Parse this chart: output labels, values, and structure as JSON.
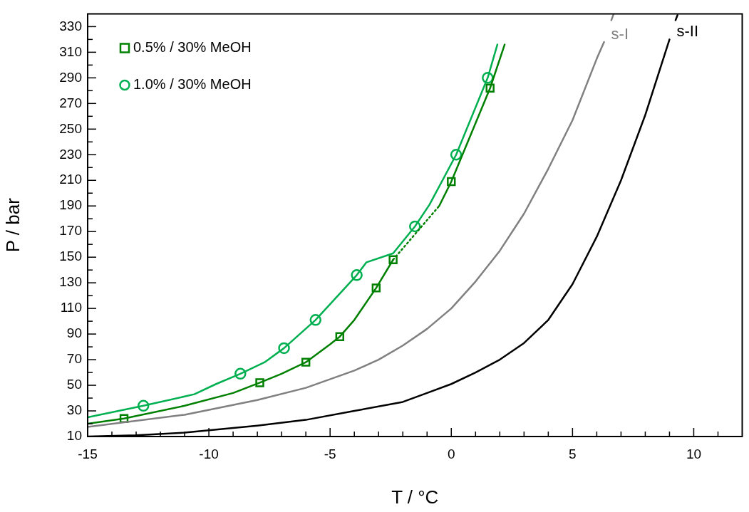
{
  "chart_data": {
    "type": "line",
    "xlabel": "T / °C",
    "ylabel": "P / bar",
    "xlim": [
      -15,
      12
    ],
    "ylim": [
      10,
      340
    ],
    "xticks": [
      -15,
      {
        "value": -14,
        "label": null
      },
      {
        "value": -13,
        "label": null
      },
      {
        "value": -12,
        "label": null
      },
      {
        "value": -11,
        "label": null
      },
      -10,
      {
        "value": -9,
        "label": null
      },
      {
        "value": -8,
        "label": null
      },
      {
        "value": -7,
        "label": null
      },
      {
        "value": -6,
        "label": null
      },
      -5,
      {
        "value": -4,
        "label": null
      },
      {
        "value": -3,
        "label": null
      },
      {
        "value": -2,
        "label": null
      },
      {
        "value": -1,
        "label": null
      },
      0,
      {
        "value": 1,
        "label": null
      },
      {
        "value": 2,
        "label": null
      },
      {
        "value": 3,
        "label": null
      },
      {
        "value": 4,
        "label": null
      },
      5,
      {
        "value": 6,
        "label": null
      },
      {
        "value": 7,
        "label": null
      },
      {
        "value": 8,
        "label": null
      },
      {
        "value": 9,
        "label": null
      },
      10,
      {
        "value": 11,
        "label": null
      }
    ],
    "yticks": [
      10,
      {
        "value": 20,
        "label": null
      },
      30,
      {
        "value": 40,
        "label": null
      },
      50,
      {
        "value": 60,
        "label": null
      },
      70,
      {
        "value": 80,
        "label": null
      },
      90,
      {
        "value": 100,
        "label": null
      },
      110,
      {
        "value": 120,
        "label": null
      },
      130,
      {
        "value": 140,
        "label": null
      },
      150,
      {
        "value": 160,
        "label": null
      },
      170,
      {
        "value": 180,
        "label": null
      },
      190,
      {
        "value": 200,
        "label": null
      },
      210,
      {
        "value": 220,
        "label": null
      },
      230,
      {
        "value": 240,
        "label": null
      },
      250,
      {
        "value": 260,
        "label": null
      },
      270,
      {
        "value": 280,
        "label": null
      },
      290,
      {
        "value": 300,
        "label": null
      },
      310,
      {
        "value": 320,
        "label": null
      },
      330
    ],
    "grid": false,
    "legend": "top left",
    "series": [
      {
        "name": "s-I",
        "marker": "none",
        "line_style": "solid",
        "color": "#808080",
        "x": [
          -15,
          -11,
          -8,
          -6,
          -4,
          -3,
          -2,
          -1,
          0,
          1,
          2,
          3,
          4,
          5,
          6,
          6.3,
          6.45,
          6.6,
          6.7
        ],
        "values": [
          17.5,
          27,
          38.5,
          48,
          61.5,
          70,
          81,
          94,
          110,
          131,
          155,
          184,
          219,
          257,
          305,
          318,
          null,
          335,
          340
        ]
      },
      {
        "name": "s-II",
        "marker": "none",
        "line_style": "solid",
        "color": "#000000",
        "x": [
          -15,
          -13,
          -11,
          -8,
          -6,
          -4,
          -2,
          -1,
          0,
          1,
          2,
          3,
          4,
          5,
          6,
          7,
          8,
          9,
          9.15,
          9.25,
          9.33
        ],
        "values": [
          10,
          11,
          13,
          18.5,
          23,
          30,
          37,
          44,
          51,
          60,
          70,
          83,
          101,
          129,
          166,
          210,
          261,
          320,
          null,
          335,
          339
        ]
      },
      {
        "marker": "none",
        "line_style": "solid",
        "color": "#008000",
        "x": [
          -15,
          -13.5,
          -11,
          -9,
          -7.9,
          -7,
          -6,
          -5,
          -4.6,
          -4,
          -3.1,
          -2.4
        ],
        "values": [
          20,
          24,
          34,
          44,
          52,
          59,
          68,
          82,
          88,
          101,
          126,
          148
        ]
      },
      {
        "marker": "none",
        "line_style": "dotted",
        "color": "#008000",
        "x": [
          -2.4,
          -0.5
        ],
        "values": [
          148,
          190
        ]
      },
      {
        "marker": "none",
        "line_style": "solid",
        "color": "#008000",
        "x": [
          -0.5,
          0,
          1.6,
          2.2
        ],
        "values": [
          190,
          209,
          282,
          316
        ]
      },
      {
        "marker": "none",
        "line_style": "solid",
        "color": "#00b050",
        "x": [
          -15,
          -12.7,
          -10.6,
          -9.7,
          -8.7,
          -7.7,
          -6.9,
          -5.6,
          -3.9,
          -3.5,
          -2.4,
          -1.5,
          -0.9,
          0.2,
          1.5,
          1.9
        ],
        "values": [
          25,
          34,
          43,
          51,
          59,
          68,
          79,
          101,
          136,
          146,
          153,
          174,
          191,
          230,
          290,
          316
        ]
      },
      {
        "name": "0.5% / 30% MeOH",
        "type": "scatter",
        "marker": "square",
        "color": "#008000",
        "x": [
          -13.5,
          -7.9,
          -6,
          -4.6,
          -3.1,
          -2.4,
          0,
          1.6
        ],
        "values": [
          24,
          52,
          68,
          88,
          126,
          148,
          209,
          282
        ]
      },
      {
        "name": "1.0% / 30% MeOH",
        "type": "scatter",
        "marker": "circle",
        "color": "#00b050",
        "x": [
          -12.7,
          -8.7,
          -6.9,
          -5.6,
          -3.9,
          -1.5,
          0.2,
          1.5
        ],
        "values": [
          34,
          59,
          79,
          101,
          136,
          174,
          230,
          290
        ]
      }
    ]
  }
}
